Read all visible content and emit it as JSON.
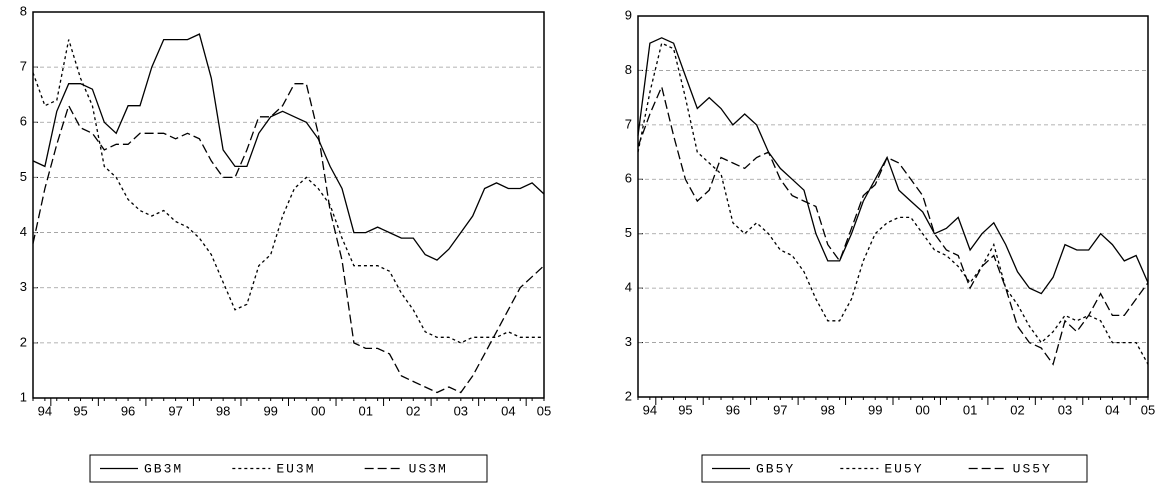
{
  "chart_data": [
    {
      "type": "line",
      "categories": [
        null,
        "94",
        null,
        null,
        "95",
        null,
        null,
        null,
        "96",
        null,
        null,
        null,
        "97",
        null,
        null,
        null,
        "98",
        null,
        null,
        null,
        "99",
        null,
        null,
        null,
        "00",
        null,
        null,
        null,
        "01",
        null,
        null,
        null,
        "02",
        null,
        null,
        null,
        "03",
        null,
        null,
        null,
        "04",
        null,
        null,
        "05"
      ],
      "ylim": [
        1,
        8
      ],
      "yticks": [
        1,
        2,
        3,
        4,
        5,
        6,
        7,
        8
      ],
      "grid": true,
      "series": [
        {
          "name": "GB3M",
          "color": "#000000",
          "dash": "solid",
          "values": [
            5.3,
            5.2,
            6.2,
            6.7,
            6.7,
            6.6,
            6.0,
            5.8,
            6.3,
            6.3,
            7.0,
            7.5,
            7.5,
            7.5,
            7.6,
            6.8,
            5.5,
            5.2,
            5.2,
            5.8,
            6.1,
            6.2,
            6.1,
            6.0,
            5.7,
            5.2,
            4.8,
            4.0,
            4.0,
            4.1,
            4.0,
            3.9,
            3.9,
            3.6,
            3.5,
            3.7,
            4.0,
            4.3,
            4.8,
            4.9,
            4.8,
            4.8,
            4.9,
            4.7
          ]
        },
        {
          "name": "EU3M",
          "color": "#000000",
          "dash": "short",
          "values": [
            6.9,
            6.3,
            6.4,
            7.5,
            6.8,
            6.3,
            5.2,
            5.0,
            4.6,
            4.4,
            4.3,
            4.4,
            4.2,
            4.1,
            3.9,
            3.6,
            3.1,
            2.6,
            2.7,
            3.4,
            3.6,
            4.3,
            4.8,
            5.0,
            4.8,
            4.5,
            3.9,
            3.4,
            3.4,
            3.4,
            3.3,
            2.9,
            2.6,
            2.2,
            2.1,
            2.1,
            2.0,
            2.1,
            2.1,
            2.1,
            2.2,
            2.1,
            2.1,
            2.1
          ]
        },
        {
          "name": "US3M",
          "color": "#000000",
          "dash": "long",
          "values": [
            3.8,
            4.8,
            5.6,
            6.3,
            5.9,
            5.8,
            5.5,
            5.6,
            5.6,
            5.8,
            5.8,
            5.8,
            5.7,
            5.8,
            5.7,
            5.3,
            5.0,
            5.0,
            5.5,
            6.1,
            6.1,
            6.3,
            6.7,
            6.7,
            5.8,
            4.4,
            3.5,
            2.0,
            1.9,
            1.9,
            1.8,
            1.4,
            1.3,
            1.2,
            1.1,
            1.2,
            1.1,
            1.4,
            1.8,
            2.2,
            2.6,
            3.0,
            3.2,
            3.4
          ]
        }
      ]
    },
    {
      "type": "line",
      "categories": [
        null,
        "94",
        null,
        null,
        "95",
        null,
        null,
        null,
        "96",
        null,
        null,
        null,
        "97",
        null,
        null,
        null,
        "98",
        null,
        null,
        null,
        "99",
        null,
        null,
        null,
        "00",
        null,
        null,
        null,
        "01",
        null,
        null,
        null,
        "02",
        null,
        null,
        null,
        "03",
        null,
        null,
        null,
        "04",
        null,
        null,
        "05"
      ],
      "ylim": [
        2,
        9
      ],
      "yticks": [
        2,
        3,
        4,
        5,
        6,
        7,
        8,
        9
      ],
      "grid": true,
      "series": [
        {
          "name": "GB5Y",
          "color": "#000000",
          "dash": "solid",
          "values": [
            6.8,
            8.5,
            8.6,
            8.5,
            7.9,
            7.3,
            7.5,
            7.3,
            7.0,
            7.2,
            7.0,
            6.5,
            6.2,
            6.0,
            5.8,
            5.0,
            4.5,
            4.5,
            5.0,
            5.6,
            6.0,
            6.4,
            5.8,
            5.6,
            5.4,
            5.0,
            5.1,
            5.3,
            4.7,
            5.0,
            5.2,
            4.8,
            4.3,
            4.0,
            3.9,
            4.2,
            4.8,
            4.7,
            4.7,
            5.0,
            4.8,
            4.5,
            4.6,
            4.1
          ]
        },
        {
          "name": "EU5Y",
          "color": "#000000",
          "dash": "short",
          "values": [
            6.5,
            7.6,
            8.5,
            8.4,
            7.5,
            6.5,
            6.3,
            6.1,
            5.2,
            5.0,
            5.2,
            5.0,
            4.7,
            4.6,
            4.3,
            3.8,
            3.4,
            3.4,
            3.8,
            4.5,
            5.0,
            5.2,
            5.3,
            5.3,
            5.0,
            4.7,
            4.6,
            4.4,
            4.1,
            4.4,
            4.8,
            4.0,
            3.7,
            3.3,
            3.0,
            3.2,
            3.5,
            3.4,
            3.5,
            3.4,
            3.0,
            3.0,
            3.0,
            2.6
          ]
        },
        {
          "name": "US5Y",
          "color": "#000000",
          "dash": "long",
          "values": [
            6.6,
            7.2,
            7.7,
            6.8,
            6.0,
            5.6,
            5.8,
            6.4,
            6.3,
            6.2,
            6.4,
            6.5,
            6.0,
            5.7,
            5.6,
            5.5,
            4.8,
            4.5,
            5.1,
            5.7,
            5.9,
            6.4,
            6.3,
            6.0,
            5.7,
            5.0,
            4.7,
            4.6,
            4.0,
            4.4,
            4.6,
            4.0,
            3.3,
            3.0,
            2.9,
            2.6,
            3.4,
            3.2,
            3.5,
            3.9,
            3.5,
            3.5,
            3.8,
            4.1
          ]
        }
      ]
    }
  ]
}
